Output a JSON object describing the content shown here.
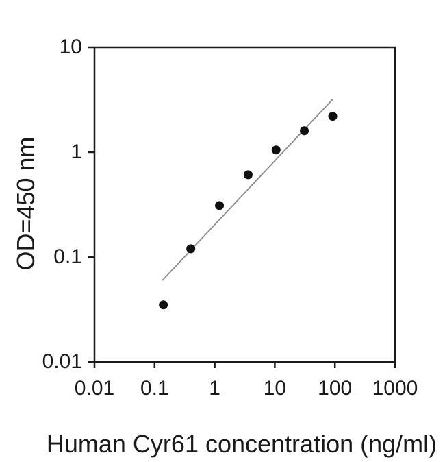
{
  "figure": {
    "background": "#ffffff",
    "text_color": "#1a1a1a"
  },
  "chart_data": {
    "type": "scatter",
    "title": "",
    "xlabel": "Human Cyr61 concentration (ng/ml)",
    "ylabel": "OD=450 nm",
    "x_scale": "log",
    "y_scale": "log",
    "xlim": [
      0.01,
      1000
    ],
    "ylim": [
      0.01,
      10
    ],
    "x_ticks": [
      0.01,
      0.1,
      1,
      10,
      100,
      1000
    ],
    "x_tick_labels": [
      "0.01",
      "0.1",
      "1",
      "10",
      "100",
      "1000"
    ],
    "y_ticks": [
      10,
      1,
      0.1,
      0.01
    ],
    "y_tick_labels": [
      "10",
      "1",
      "0.1",
      "0.01"
    ],
    "grid": false,
    "legend": null,
    "axis_color": "#1a1a1a",
    "series": [
      {
        "name": "standard-curve-points",
        "type": "scatter",
        "marker": "filled-circle",
        "marker_radius": 6.5,
        "color": "#111111",
        "points": [
          {
            "x": 0.14,
            "y": 0.035
          },
          {
            "x": 0.4,
            "y": 0.12
          },
          {
            "x": 1.2,
            "y": 0.31
          },
          {
            "x": 3.6,
            "y": 0.61
          },
          {
            "x": 10.5,
            "y": 1.05
          },
          {
            "x": 31,
            "y": 1.6
          },
          {
            "x": 92,
            "y": 2.2
          }
        ]
      },
      {
        "name": "fit-line",
        "type": "line",
        "color": "#8a8a8a",
        "width": 1.8,
        "points": [
          {
            "x": 0.135,
            "y": 0.06
          },
          {
            "x": 92,
            "y": 3.2
          }
        ]
      }
    ]
  }
}
